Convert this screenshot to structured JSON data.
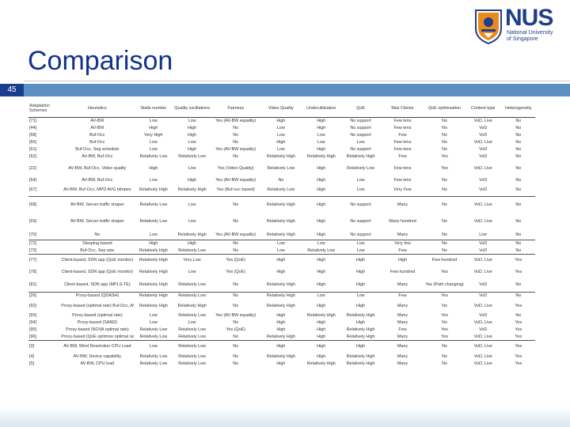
{
  "logo": {
    "main": "NUS",
    "sub_line1": "National University",
    "sub_line2": "of Singapore"
  },
  "slide": {
    "title": "Comparison",
    "number": "45"
  },
  "table": {
    "headers": [
      "Adaptation Schemes",
      "Heuristics",
      "Stalls number",
      "Quality oscillations",
      "Fairness",
      "Video Quality",
      "Underutilization",
      "QoE",
      "Max Clients",
      "QoE optimization",
      "Content type",
      "Heterogeneity"
    ],
    "rows": [
      [
        "[71]",
        "AV-BW",
        "Low",
        "Low",
        "Yes (AV-BW equality)",
        "High",
        "High",
        "No support",
        "Few tens",
        "No",
        "VoD, Live",
        "No"
      ],
      [
        "[44]",
        "AV-BW",
        "High",
        "High",
        "No",
        "Low",
        "High",
        "No support",
        "Few tens",
        "No",
        "VoD",
        "No"
      ],
      [
        "[58]",
        "Buf-Occ",
        "Very High",
        "High",
        "No",
        "Low",
        "Low",
        "No support",
        "Few",
        "No",
        "VoD",
        "No"
      ],
      [
        "[60]",
        "Buf-Occ",
        "Low",
        "Low",
        "No",
        "High",
        "Low",
        "Low",
        "Few tens",
        "No",
        "VoD, Live",
        "No"
      ],
      [
        "[61]",
        "Buf-Occ, Seg schedule",
        "Low",
        "High",
        "Yes (AV-BW equality)",
        "Low",
        "High",
        "No support",
        "Few tens",
        "No",
        "VoD",
        "No"
      ],
      [
        "[62]",
        "AV-BW, Buf-Occ",
        "Relatively Low",
        "Relatively Low",
        "No",
        "Relatively High",
        "Relatively High",
        "Relatively High",
        "Few",
        "Yes",
        "VoD",
        "No"
      ],
      [
        "[22]",
        "AV-BW, Buf-Occ, Video quality",
        "High",
        "Low",
        "Yes (Video Quality)",
        "Relatively Low",
        "High",
        "Relatively Low",
        "Few tens",
        "Yes",
        "VoD, Live",
        "No"
      ],
      [
        "[64]",
        "AV-BW, Buf-Occ",
        "Low",
        "High",
        "Yes (AV-BW equality)",
        "No",
        "High",
        "Low",
        "Few tens",
        "No",
        "VoD",
        "No"
      ],
      [
        "[67]",
        "AV-BW, Buf-Occ, MPD AVG bitrates",
        "Relatively High",
        "Relatively High",
        "Yes (Buf-occ based)",
        "Relatively Low",
        "High",
        "Low",
        "Very Few",
        "No",
        "VoD",
        "No"
      ],
      [
        "[68]",
        "AV-BW, Server traffic shaper",
        "Relatively Low",
        "Low",
        "No",
        "Relatively High",
        "High",
        "No support",
        "Many",
        "No",
        "VoD, Live",
        "No"
      ],
      [
        "[69]",
        "AV-BW, Server traffic shaper",
        "Relatively Low",
        "Low",
        "No",
        "Relatively High",
        "High",
        "No support",
        "Many hundred",
        "No",
        "VoD, Live",
        "No"
      ],
      [
        "[70]",
        "No",
        "Low",
        "Relatively High",
        "Yes (AV-BW equality)",
        "Relatively High",
        "High",
        "No support",
        "Many",
        "No",
        "Live",
        "No"
      ],
      [
        "[72]",
        "Sleeping-based",
        "High",
        "High",
        "No",
        "Low",
        "Low",
        "Low",
        "Very few",
        "No",
        "VoD",
        "No"
      ],
      [
        "[73]",
        "Buf-Occ, Sep size",
        "Relatively High",
        "Relatively Low",
        "No",
        "Low",
        "Relatively Low",
        "Low",
        "Few",
        "No",
        "VoD",
        "No"
      ],
      [
        "[77]",
        "Client-based, SDN app (QoE monitor)",
        "Relatively High",
        "Very Low",
        "Yes (QoE)",
        "High",
        "High",
        "High",
        "High",
        "Few hundred",
        "VoD, Live",
        "Yes"
      ],
      [
        "[78]",
        "Client-based, SDN app (QoE monitor)",
        "Relatively High",
        "Low",
        "Yes (QoE)",
        "High",
        "High",
        "High",
        "Few hundred",
        "Yes",
        "VoD, Live",
        "Yes"
      ],
      [
        "[81]",
        "Client-based, SDN app (MPLS-TE)",
        "Relatively High",
        "Relatively Low",
        "No",
        "Relatively High",
        "High",
        "High",
        "Many",
        "Yes (Path changing)",
        "VoD",
        "No"
      ],
      [
        "[26]",
        "Proxy-based (QDASH)",
        "Relatively High",
        "Relatively Low",
        "No",
        "Relatively High",
        "Low",
        "Low",
        "Few",
        "Yes",
        "VoD",
        "No"
      ],
      [
        "[92]",
        "Proxy-based (optimal rate) Buf-Occ, AV-BW",
        "Relatively High",
        "Relatively High",
        "No",
        "Relatively High",
        "High",
        "High",
        "Many",
        "No",
        "VoD, Live",
        "Yes"
      ],
      [
        "[93]",
        "Proxy-based (optimal rate)",
        "Low",
        "Relatively Low",
        "Yes (AV-BW equality)",
        "High",
        "Relatively High",
        "Relatively High",
        "Many",
        "Yes",
        "VoD",
        "No"
      ],
      [
        "[94]",
        "Proxy-based (SAND)",
        "Low",
        "Low",
        "No",
        "High",
        "High",
        "High",
        "Many",
        "No",
        "VoD, Live",
        "Yes"
      ],
      [
        "[95]",
        "Proxy-based (NOVA optimal rate)",
        "Relatively Low",
        "Relatively Low",
        "Yes (QoE)",
        "High",
        "High",
        "Relatively High",
        "Few",
        "Yes",
        "VoD",
        "Yes"
      ],
      [
        "[96]",
        "Proxy-based (QoE optimize optimal rate)",
        "Relatively Low",
        "Relatively Low",
        "No",
        "Relatively High",
        "High",
        "Relatively High",
        "Many",
        "Yes",
        "VoD, Live",
        "Yes"
      ],
      [
        "[3]",
        "AV-BW, Wind Resolution CPU Load",
        "Low",
        "Relatively Low",
        "No",
        "High",
        "High",
        "High",
        "Many",
        "No",
        "VoD, Live",
        "Yes"
      ],
      [
        "[4]",
        "AV-BW, Device capability",
        "Relatively Low",
        "Relatively Low",
        "No",
        "Relatively High",
        "High",
        "Relatively High",
        "Many",
        "No",
        "VoD, Live",
        "Yes"
      ],
      [
        "[5]",
        "AV-BW, CPU load",
        "Relatively Low",
        "Relatively Low",
        "No",
        "High",
        "Relatively High",
        "Relatively High",
        "Many",
        "No",
        "VoD, Live",
        "Yes"
      ]
    ]
  }
}
